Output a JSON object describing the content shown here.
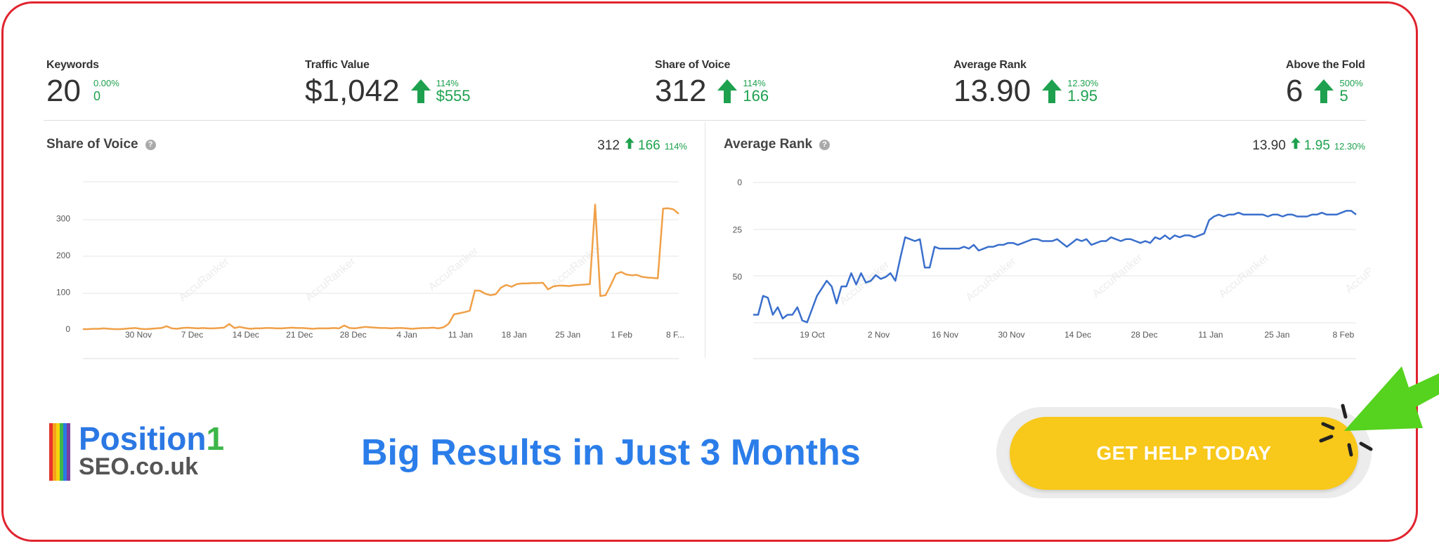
{
  "stats": [
    {
      "label": "Keywords",
      "value": "20",
      "pct": "0.00%",
      "delta": "0",
      "arrow": false
    },
    {
      "label": "Traffic Value",
      "value": "$1,042",
      "pct": "114%",
      "delta": "$555",
      "arrow": true
    },
    {
      "label": "Share of Voice",
      "value": "312",
      "pct": "114%",
      "delta": "166",
      "arrow": true
    },
    {
      "label": "Average Rank",
      "value": "13.90",
      "pct": "12.30%",
      "delta": "1.95",
      "arrow": true
    },
    {
      "label": "Above the Fold",
      "value": "6",
      "pct": "500%",
      "delta": "5",
      "arrow": true
    }
  ],
  "panels": {
    "sov": {
      "title": "Share of Voice",
      "help": "?",
      "value": "312",
      "delta": "166",
      "pct": "114%"
    },
    "rank": {
      "title": "Average Rank",
      "help": "?",
      "value": "13.90",
      "delta": "1.95",
      "pct": "12.30%"
    }
  },
  "watermark": "AccuRanker",
  "colors": {
    "border": "#e0242f",
    "green": "#1ea14e",
    "sov_line": "#f0a048",
    "rank_line": "#3a6fcc",
    "cta": "#f8c81a",
    "tagline": "#2b7de9"
  },
  "chart_data": [
    {
      "type": "line",
      "title": "Share of Voice",
      "x_ticks": [
        "30 Nov",
        "7 Dec",
        "14 Dec",
        "21 Dec",
        "28 Dec",
        "4 Jan",
        "11 Jan",
        "18 Jan",
        "25 Jan",
        "1 Feb",
        "8 F..."
      ],
      "y_ticks": [
        "0",
        "100",
        "200",
        "300"
      ],
      "ylim": [
        0,
        400
      ],
      "grid": true,
      "series": [
        {
          "values": [
            0,
            0,
            1,
            1,
            2,
            1,
            0,
            0,
            1,
            2,
            3,
            1,
            0,
            1,
            2,
            3,
            8,
            2,
            1,
            3,
            4,
            3,
            2,
            3,
            2,
            2,
            3,
            4,
            14,
            3,
            6,
            3,
            1,
            2,
            2,
            3,
            3,
            2,
            2,
            3,
            4,
            3,
            3,
            2,
            1,
            2,
            2,
            2,
            3,
            2,
            10,
            3,
            2,
            4,
            6,
            5,
            4,
            3,
            3,
            2,
            3,
            3,
            2,
            1,
            2,
            3,
            3,
            4,
            2,
            5,
            15,
            40,
            43,
            46,
            50,
            105,
            104,
            96,
            92,
            95,
            113,
            120,
            115,
            122,
            124,
            124,
            125,
            125,
            126,
            108,
            116,
            118,
            118,
            117,
            119,
            120,
            121,
            122,
            338,
            90,
            92,
            120,
            150,
            155,
            148,
            146,
            147,
            142,
            140,
            139,
            138,
            327,
            328,
            325,
            313
          ]
        }
      ]
    },
    {
      "type": "line",
      "title": "Average Rank",
      "x_ticks": [
        "19 Oct",
        "2 Nov",
        "16 Nov",
        "30 Nov",
        "14 Dec",
        "28 Dec",
        "11 Jan",
        "25 Jan",
        "8 Feb"
      ],
      "y_ticks": [
        "0",
        "25",
        "50"
      ],
      "ylim": [
        75,
        0
      ],
      "y_inverted": true,
      "grid": true,
      "series": [
        {
          "values": [
            70,
            70,
            60,
            61,
            70,
            66,
            72,
            70,
            70,
            66,
            73,
            74,
            67,
            60,
            56,
            52,
            55,
            64,
            55,
            55,
            48,
            54,
            48,
            53,
            52,
            49,
            51,
            50,
            48,
            52,
            40,
            29,
            30,
            31,
            30,
            45,
            45,
            34,
            35,
            35,
            35,
            35,
            35,
            34,
            35,
            33,
            36,
            35,
            34,
            34,
            33,
            33,
            32,
            32,
            33,
            32,
            31,
            30,
            30,
            31,
            31,
            31,
            30,
            32,
            34,
            32,
            30,
            31,
            30,
            33,
            32,
            31,
            31,
            29,
            30,
            31,
            30,
            30,
            31,
            32,
            31,
            32,
            29,
            30,
            28,
            30,
            28,
            29,
            28,
            28,
            29,
            28,
            27,
            20,
            18,
            17,
            18,
            17,
            17,
            16,
            17,
            17,
            17,
            17,
            17,
            18,
            17,
            17,
            18,
            17,
            17,
            18,
            18,
            18,
            17,
            17,
            16,
            17,
            17,
            17,
            16,
            15,
            15,
            17
          ]
        }
      ]
    }
  ],
  "logo": {
    "word1": "Position",
    "word1_accent": "1",
    "word2": "SEO.co.uk"
  },
  "tagline": "Big Results in Just 3 Months",
  "cta": {
    "label": "GET HELP TODAY"
  }
}
